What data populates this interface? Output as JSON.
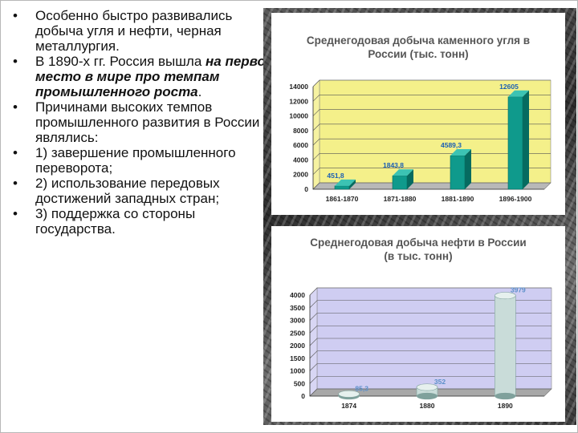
{
  "bullets": [
    {
      "text": "Особенно быстро развивались добыча угля и нефти, черная металлургия."
    },
    {
      "prefix": "В 1890-х гг. Россия вышла ",
      "emph": "на первое место в мире про темпам промышленного роста",
      "suffix": "."
    },
    {
      "text": "Причинами высоких темпов промышленного развития в России являлись:"
    },
    {
      "text": "1) завершение промышленного переворота;"
    },
    {
      "text": "2) использование передовых достижений западных стран;"
    },
    {
      "text": "3) поддержка со стороны государства."
    }
  ],
  "chart_data": [
    {
      "type": "bar",
      "title_line1": "Среднегодовая добыча каменного угля в",
      "title_line2": "России (тыс. тонн)",
      "categories": [
        "1861-1870",
        "1871-1880",
        "1881-1890",
        "1896-1900"
      ],
      "values": [
        451.8,
        1843.8,
        4589.3,
        12605
      ],
      "value_labels": [
        "451,8",
        "1843,8",
        "4589,3",
        "12605"
      ],
      "ylim": [
        0,
        14000
      ],
      "yticks": [
        0,
        2000,
        4000,
        6000,
        8000,
        10000,
        12000,
        14000
      ],
      "grid": true,
      "colors": {
        "plot_bg": "#f4f08a",
        "floor": "#b8b8b8",
        "bar": "#0f9a8c",
        "bar_dark": "#066b60",
        "label": "#1a5fb4"
      }
    },
    {
      "type": "bar",
      "title_line1": "Среднегодовая добыча нефти в России",
      "title_line2": "(в тыс. тонн)",
      "categories": [
        "1874",
        "1880",
        "1890"
      ],
      "values": [
        85.3,
        352,
        3979
      ],
      "value_labels": [
        "85,3",
        "352",
        "3979"
      ],
      "ylim": [
        0,
        4000
      ],
      "yticks": [
        0,
        500,
        1000,
        1500,
        2000,
        2500,
        3000,
        3500,
        4000
      ],
      "grid": true,
      "colors": {
        "plot_bg": "#cfcdf2",
        "floor": "#a8a8a8",
        "bar": "#c9dcd9",
        "bar_dark": "#7fa19c",
        "label": "#5b8fc9"
      }
    }
  ]
}
